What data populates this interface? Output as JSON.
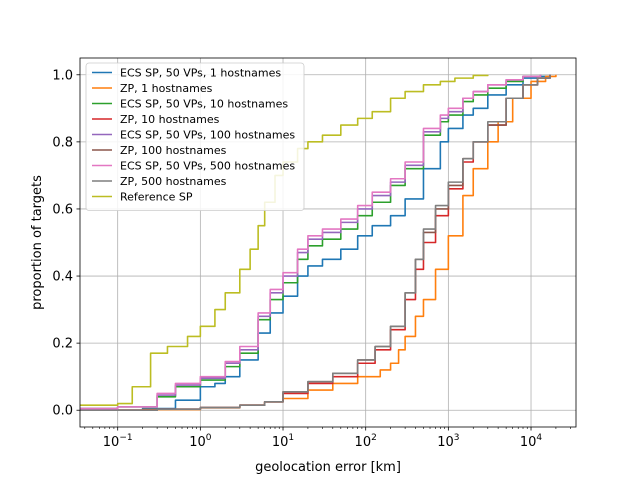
{
  "chart_data": {
    "type": "line",
    "xlabel": "geolocation error [km]",
    "ylabel": "proportion of targets",
    "xscale": "log",
    "xlim": [
      0.035,
      35000
    ],
    "ylim": [
      -0.05,
      1.05
    ],
    "grid": true,
    "legend_position": "top-left",
    "x_ticks": [
      {
        "value": 0.1,
        "base": "10",
        "exp": "−1"
      },
      {
        "value": 1,
        "base": "10",
        "exp": "0"
      },
      {
        "value": 10,
        "base": "10",
        "exp": "1"
      },
      {
        "value": 100,
        "base": "10",
        "exp": "2"
      },
      {
        "value": 1000,
        "base": "10",
        "exp": "3"
      },
      {
        "value": 10000,
        "base": "10",
        "exp": "4"
      }
    ],
    "y_ticks": [
      "0.0",
      "0.2",
      "0.4",
      "0.6",
      "0.8",
      "1.0"
    ],
    "series": [
      {
        "name": "ECS SP, 50 VPs, 1 hostnames",
        "color": "#1f77b4",
        "points": [
          [
            0.035,
            0.0
          ],
          [
            0.2,
            0.005
          ],
          [
            0.5,
            0.03
          ],
          [
            1,
            0.07
          ],
          [
            1.5,
            0.08
          ],
          [
            2,
            0.1
          ],
          [
            3,
            0.15
          ],
          [
            5,
            0.23
          ],
          [
            7,
            0.29
          ],
          [
            10,
            0.34
          ],
          [
            15,
            0.4
          ],
          [
            20,
            0.43
          ],
          [
            30,
            0.45
          ],
          [
            50,
            0.48
          ],
          [
            80,
            0.52
          ],
          [
            120,
            0.55
          ],
          [
            200,
            0.58
          ],
          [
            300,
            0.63
          ],
          [
            500,
            0.72
          ],
          [
            800,
            0.8
          ],
          [
            1000,
            0.84
          ],
          [
            1500,
            0.88
          ],
          [
            2000,
            0.9
          ],
          [
            3000,
            0.94
          ],
          [
            5000,
            0.97
          ],
          [
            8000,
            0.99
          ],
          [
            12000,
            0.995
          ],
          [
            17000,
            1.0
          ]
        ]
      },
      {
        "name": "ZP, 1 hostnames",
        "color": "#ff7f0e",
        "points": [
          [
            0.035,
            0.0
          ],
          [
            0.2,
            0.002
          ],
          [
            1,
            0.007
          ],
          [
            3,
            0.015
          ],
          [
            6,
            0.025
          ],
          [
            10,
            0.035
          ],
          [
            20,
            0.06
          ],
          [
            40,
            0.08
          ],
          [
            80,
            0.1
          ],
          [
            150,
            0.12
          ],
          [
            200,
            0.14
          ],
          [
            250,
            0.18
          ],
          [
            300,
            0.22
          ],
          [
            400,
            0.28
          ],
          [
            500,
            0.33
          ],
          [
            700,
            0.42
          ],
          [
            1000,
            0.52
          ],
          [
            1500,
            0.64
          ],
          [
            2000,
            0.72
          ],
          [
            3000,
            0.8
          ],
          [
            4000,
            0.86
          ],
          [
            6000,
            0.93
          ],
          [
            10000,
            0.98
          ],
          [
            15000,
            0.995
          ],
          [
            20000,
            1.0
          ]
        ]
      },
      {
        "name": "ZP, 10 hostnames",
        "color": "#d62728",
        "points": [
          [
            0.035,
            0.0
          ],
          [
            0.3,
            0.003
          ],
          [
            1,
            0.008
          ],
          [
            3,
            0.015
          ],
          [
            6,
            0.025
          ],
          [
            10,
            0.05
          ],
          [
            20,
            0.08
          ],
          [
            40,
            0.1
          ],
          [
            80,
            0.14
          ],
          [
            130,
            0.18
          ],
          [
            200,
            0.24
          ],
          [
            300,
            0.33
          ],
          [
            400,
            0.42
          ],
          [
            500,
            0.5
          ],
          [
            700,
            0.58
          ],
          [
            1000,
            0.66
          ],
          [
            1500,
            0.74
          ],
          [
            2000,
            0.8
          ],
          [
            3000,
            0.85
          ],
          [
            5000,
            0.93
          ],
          [
            8000,
            0.97
          ],
          [
            12000,
            0.99
          ],
          [
            17000,
            1.0
          ]
        ]
      },
      {
        "name": "ZP, 100 hostnames",
        "color": "#8c564b",
        "points": [
          [
            0.035,
            0.0
          ],
          [
            0.3,
            0.003
          ],
          [
            1,
            0.008
          ],
          [
            3,
            0.015
          ],
          [
            6,
            0.025
          ],
          [
            10,
            0.055
          ],
          [
            20,
            0.085
          ],
          [
            40,
            0.11
          ],
          [
            80,
            0.15
          ],
          [
            130,
            0.19
          ],
          [
            200,
            0.25
          ],
          [
            300,
            0.35
          ],
          [
            400,
            0.45
          ],
          [
            500,
            0.53
          ],
          [
            700,
            0.6
          ],
          [
            1000,
            0.67
          ],
          [
            1500,
            0.75
          ],
          [
            2000,
            0.8
          ],
          [
            3000,
            0.85
          ],
          [
            5000,
            0.93
          ],
          [
            8000,
            0.97
          ],
          [
            12000,
            0.99
          ],
          [
            17000,
            1.0
          ]
        ]
      },
      {
        "name": "ZP, 500 hostnames",
        "color": "#7f7f7f",
        "points": [
          [
            0.035,
            0.0
          ],
          [
            0.3,
            0.003
          ],
          [
            1,
            0.008
          ],
          [
            3,
            0.015
          ],
          [
            6,
            0.025
          ],
          [
            10,
            0.055
          ],
          [
            20,
            0.085
          ],
          [
            40,
            0.11
          ],
          [
            80,
            0.15
          ],
          [
            130,
            0.19
          ],
          [
            200,
            0.25
          ],
          [
            300,
            0.35
          ],
          [
            400,
            0.45
          ],
          [
            500,
            0.54
          ],
          [
            700,
            0.61
          ],
          [
            1000,
            0.68
          ],
          [
            1500,
            0.75
          ],
          [
            2000,
            0.8
          ],
          [
            3000,
            0.86
          ],
          [
            5000,
            0.93
          ],
          [
            8000,
            0.97
          ],
          [
            12000,
            0.99
          ],
          [
            17000,
            1.0
          ]
        ]
      },
      {
        "name": "ECS SP, 50 VPs, 10 hostnames",
        "color": "#2ca02c",
        "points": [
          [
            0.035,
            0.005
          ],
          [
            0.1,
            0.01
          ],
          [
            0.3,
            0.04
          ],
          [
            0.5,
            0.07
          ],
          [
            1,
            0.09
          ],
          [
            2,
            0.13
          ],
          [
            3,
            0.17
          ],
          [
            5,
            0.27
          ],
          [
            7,
            0.33
          ],
          [
            10,
            0.38
          ],
          [
            15,
            0.45
          ],
          [
            20,
            0.49
          ],
          [
            30,
            0.51
          ],
          [
            50,
            0.54
          ],
          [
            80,
            0.58
          ],
          [
            120,
            0.62
          ],
          [
            200,
            0.67
          ],
          [
            300,
            0.72
          ],
          [
            500,
            0.82
          ],
          [
            800,
            0.86
          ],
          [
            1000,
            0.88
          ],
          [
            1500,
            0.92
          ],
          [
            2000,
            0.94
          ],
          [
            3000,
            0.96
          ],
          [
            5000,
            0.98
          ],
          [
            8000,
            0.995
          ],
          [
            13000,
            1.0
          ]
        ]
      },
      {
        "name": "ECS SP, 50 VPs, 100 hostnames",
        "color": "#9467bd",
        "points": [
          [
            0.035,
            0.005
          ],
          [
            0.1,
            0.01
          ],
          [
            0.3,
            0.045
          ],
          [
            0.5,
            0.075
          ],
          [
            1,
            0.095
          ],
          [
            2,
            0.14
          ],
          [
            3,
            0.18
          ],
          [
            5,
            0.28
          ],
          [
            7,
            0.35
          ],
          [
            10,
            0.4
          ],
          [
            15,
            0.47
          ],
          [
            20,
            0.51
          ],
          [
            30,
            0.53
          ],
          [
            50,
            0.56
          ],
          [
            80,
            0.6
          ],
          [
            120,
            0.64
          ],
          [
            200,
            0.68
          ],
          [
            300,
            0.73
          ],
          [
            500,
            0.83
          ],
          [
            800,
            0.87
          ],
          [
            1000,
            0.89
          ],
          [
            1500,
            0.93
          ],
          [
            2000,
            0.95
          ],
          [
            3000,
            0.97
          ],
          [
            5000,
            0.985
          ],
          [
            8000,
            0.995
          ],
          [
            13000,
            1.0
          ]
        ]
      },
      {
        "name": "ECS SP, 50 VPs, 500 hostnames",
        "color": "#e377c2",
        "points": [
          [
            0.035,
            0.005
          ],
          [
            0.1,
            0.01
          ],
          [
            0.3,
            0.05
          ],
          [
            0.5,
            0.08
          ],
          [
            1,
            0.1
          ],
          [
            2,
            0.145
          ],
          [
            3,
            0.19
          ],
          [
            5,
            0.29
          ],
          [
            7,
            0.36
          ],
          [
            10,
            0.41
          ],
          [
            15,
            0.48
          ],
          [
            20,
            0.52
          ],
          [
            30,
            0.54
          ],
          [
            50,
            0.57
          ],
          [
            80,
            0.61
          ],
          [
            120,
            0.65
          ],
          [
            200,
            0.69
          ],
          [
            300,
            0.74
          ],
          [
            500,
            0.84
          ],
          [
            800,
            0.88
          ],
          [
            1000,
            0.9
          ],
          [
            1500,
            0.93
          ],
          [
            2000,
            0.95
          ],
          [
            3000,
            0.97
          ],
          [
            5000,
            0.985
          ],
          [
            8000,
            0.995
          ],
          [
            13000,
            1.0
          ]
        ]
      },
      {
        "name": "Reference SP",
        "color": "#bcbd22",
        "points": [
          [
            0.035,
            0.015
          ],
          [
            0.1,
            0.02
          ],
          [
            0.15,
            0.07
          ],
          [
            0.25,
            0.17
          ],
          [
            0.4,
            0.19
          ],
          [
            0.7,
            0.22
          ],
          [
            1,
            0.25
          ],
          [
            1.5,
            0.3
          ],
          [
            2,
            0.35
          ],
          [
            3,
            0.42
          ],
          [
            4,
            0.48
          ],
          [
            5,
            0.55
          ],
          [
            6,
            0.62
          ],
          [
            8,
            0.7
          ],
          [
            10,
            0.74
          ],
          [
            15,
            0.78
          ],
          [
            20,
            0.8
          ],
          [
            30,
            0.82
          ],
          [
            50,
            0.85
          ],
          [
            80,
            0.87
          ],
          [
            120,
            0.89
          ],
          [
            200,
            0.93
          ],
          [
            300,
            0.95
          ],
          [
            500,
            0.97
          ],
          [
            800,
            0.98
          ],
          [
            1200,
            0.99
          ],
          [
            2000,
            0.998
          ],
          [
            3000,
            1.0
          ]
        ]
      }
    ],
    "legend_order": [
      0,
      1,
      5,
      2,
      6,
      3,
      7,
      4,
      8
    ]
  }
}
